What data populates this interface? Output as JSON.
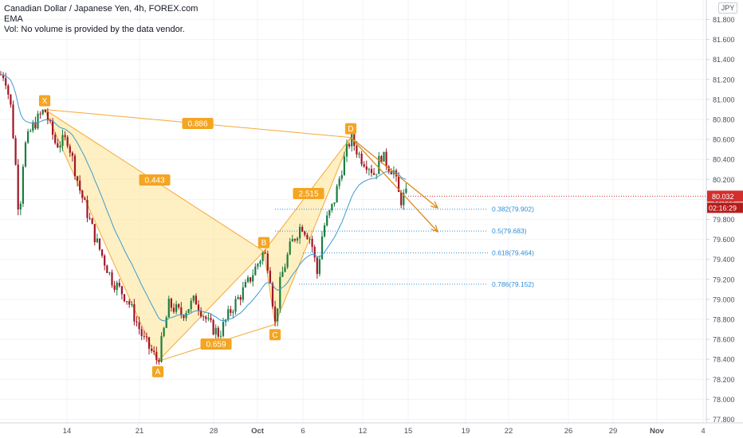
{
  "legend": {
    "symbol_line": "Canadian Dollar / Japanese Yen, 4h, FOREX.com",
    "ema_line": "EMA",
    "volume_line": "Vol: No volume is provided by the data vendor."
  },
  "currency_tag": "JPY",
  "colors": {
    "up_candle": "#1b7d3f",
    "down_candle": "#a01626",
    "ema": "#3d9ad1",
    "pattern_fill": "#fde38f",
    "pattern_line": "#f6a738",
    "label_box": "#f4a521",
    "arrow": "#dc8b1e",
    "fib": "#2f8fd8",
    "last_price": "#d32f2f",
    "countdown": "#b71c1c"
  },
  "chart_data": {
    "type": "candlestick",
    "ylim": [
      77.6,
      81.95
    ],
    "y_ticks": [
      "81.800",
      "81.600",
      "81.400",
      "81.200",
      "81.000",
      "80.800",
      "80.600",
      "80.400",
      "80.200",
      "80.000",
      "79.800",
      "79.600",
      "79.400",
      "79.200",
      "79.000",
      "78.800",
      "78.600",
      "78.400",
      "78.200",
      "78.000",
      "77.800"
    ],
    "x_ticks": [
      "14",
      "21",
      "28",
      "Oct",
      "6",
      "12",
      "15",
      "19",
      "22",
      "26",
      "29",
      "Nov",
      "4"
    ],
    "last_price": "80.032",
    "countdown": "02:16:29",
    "harmonic_pattern": {
      "points": [
        {
          "label": "X",
          "value": 80.9
        },
        {
          "label": "A",
          "value": 78.38
        },
        {
          "label": "B",
          "value": 79.48
        },
        {
          "label": "C",
          "value": 78.75
        },
        {
          "label": "D",
          "value": 80.62
        }
      ],
      "ratios": [
        "0.886",
        "0.443",
        "0.659",
        "2.515"
      ]
    },
    "fib_levels": [
      {
        "label": "0.382(79.902)",
        "value": 79.902
      },
      {
        "label": "0.5(79.683)",
        "value": 79.683
      },
      {
        "label": "0.618(79.464)",
        "value": 79.464
      },
      {
        "label": "0.786(79.152)",
        "value": 79.152
      }
    ]
  }
}
